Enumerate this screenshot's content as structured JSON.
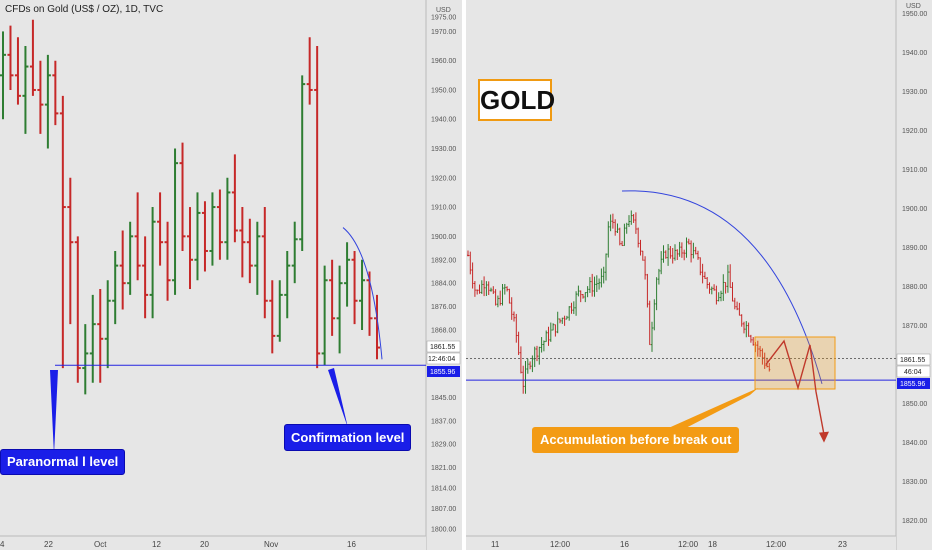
{
  "header": {
    "symbol_text": "CFDs on Gold (US$ / OZ), 1D, TVC",
    "currency": "USD"
  },
  "colors": {
    "bull": "#2e7d32",
    "bear": "#c62828",
    "support_line": "#2424e0",
    "arc": "#3344dd",
    "annotation_blue": "#1a1ee8",
    "annotation_orange": "#f39b14",
    "pattern_line": "#c0392b",
    "chart_background": "#e6e6e6"
  },
  "annotations": {
    "paranormal_label": "Paranormal l level",
    "confirmation_label": "Confirmation level",
    "gold_title": "GOLD",
    "accumulation_label": "Accumulation before break out"
  },
  "chart_data": [
    {
      "type": "ohlc",
      "name": "left-daily",
      "timeframe": "1D",
      "x_labels": [
        "4",
        "22",
        "Oct",
        "12",
        "20",
        "Nov",
        "16"
      ],
      "y_ticks": [
        1975.0,
        1970.0,
        1960.0,
        1950.0,
        1940.0,
        1930.0,
        1920.0,
        1910.0,
        1900.0,
        1892.0,
        1884.0,
        1876.0,
        1868.0,
        1861.55,
        1855.96,
        1845.0,
        1837.0,
        1829.0,
        1821.0,
        1814.0,
        1807.0,
        1800.0
      ],
      "ylim": [
        1799,
        1978
      ],
      "last_price": "1861.55",
      "countdown": "12:46:04",
      "support_level": "1855.96",
      "support_value": 1855.96,
      "bars": [
        [
          1955,
          1970,
          1940,
          1962
        ],
        [
          1962,
          1972,
          1950,
          1955
        ],
        [
          1955,
          1968,
          1945,
          1948
        ],
        [
          1948,
          1965,
          1935,
          1958
        ],
        [
          1958,
          1974,
          1948,
          1950
        ],
        [
          1950,
          1960,
          1935,
          1945
        ],
        [
          1945,
          1962,
          1930,
          1955
        ],
        [
          1955,
          1960,
          1938,
          1942
        ],
        [
          1942,
          1948,
          1855,
          1910
        ],
        [
          1910,
          1920,
          1870,
          1898
        ],
        [
          1898,
          1900,
          1850,
          1855
        ],
        [
          1855,
          1870,
          1846,
          1860
        ],
        [
          1860,
          1880,
          1850,
          1870
        ],
        [
          1870,
          1882,
          1850,
          1865
        ],
        [
          1865,
          1885,
          1855,
          1878
        ],
        [
          1878,
          1895,
          1870,
          1890
        ],
        [
          1890,
          1902,
          1875,
          1884
        ],
        [
          1884,
          1905,
          1880,
          1900
        ],
        [
          1900,
          1915,
          1885,
          1890
        ],
        [
          1890,
          1900,
          1872,
          1880
        ],
        [
          1880,
          1910,
          1872,
          1905
        ],
        [
          1905,
          1915,
          1890,
          1898
        ],
        [
          1898,
          1905,
          1878,
          1885
        ],
        [
          1885,
          1930,
          1880,
          1925
        ],
        [
          1925,
          1932,
          1895,
          1900
        ],
        [
          1900,
          1910,
          1882,
          1892
        ],
        [
          1892,
          1915,
          1885,
          1908
        ],
        [
          1908,
          1912,
          1888,
          1895
        ],
        [
          1895,
          1915,
          1890,
          1910
        ],
        [
          1910,
          1916,
          1892,
          1898
        ],
        [
          1898,
          1920,
          1892,
          1915
        ],
        [
          1915,
          1928,
          1898,
          1902
        ],
        [
          1902,
          1910,
          1886,
          1898
        ],
        [
          1898,
          1906,
          1884,
          1890
        ],
        [
          1890,
          1905,
          1880,
          1900
        ],
        [
          1900,
          1910,
          1872,
          1878
        ],
        [
          1878,
          1885,
          1860,
          1866
        ],
        [
          1866,
          1885,
          1864,
          1880
        ],
        [
          1880,
          1895,
          1872,
          1890
        ],
        [
          1890,
          1905,
          1884,
          1899
        ],
        [
          1899,
          1955,
          1895,
          1952
        ],
        [
          1952,
          1968,
          1945,
          1950
        ],
        [
          1950,
          1965,
          1855,
          1860
        ],
        [
          1860,
          1890,
          1856,
          1885
        ],
        [
          1885,
          1892,
          1866,
          1872
        ],
        [
          1872,
          1890,
          1860,
          1884
        ],
        [
          1884,
          1898,
          1876,
          1892
        ],
        [
          1892,
          1895,
          1870,
          1878
        ],
        [
          1878,
          1892,
          1868,
          1885
        ],
        [
          1885,
          1888,
          1866,
          1872
        ],
        [
          1872,
          1880,
          1858,
          1862
        ]
      ]
    },
    {
      "type": "ohlc",
      "name": "right-intraday",
      "x_labels": [
        "11",
        "12:00",
        "16",
        "12:00",
        "18",
        "12:00",
        "23"
      ],
      "y_ticks": [
        1950.0,
        1940.0,
        1930.0,
        1920.0,
        1910.0,
        1900.0,
        1890.0,
        1880.0,
        1870.0,
        1861.55,
        1855.96,
        1850.0,
        1840.0,
        1830.0,
        1820.0
      ],
      "ylim": [
        1817,
        1953
      ],
      "last_price": "1861.55",
      "countdown": "46:04",
      "support_level": "1855.96",
      "support_value": 1855.96,
      "arc_label": "",
      "zigzag_prices": [
        1860,
        1866,
        1854,
        1865,
        1853,
        1842
      ]
    }
  ]
}
